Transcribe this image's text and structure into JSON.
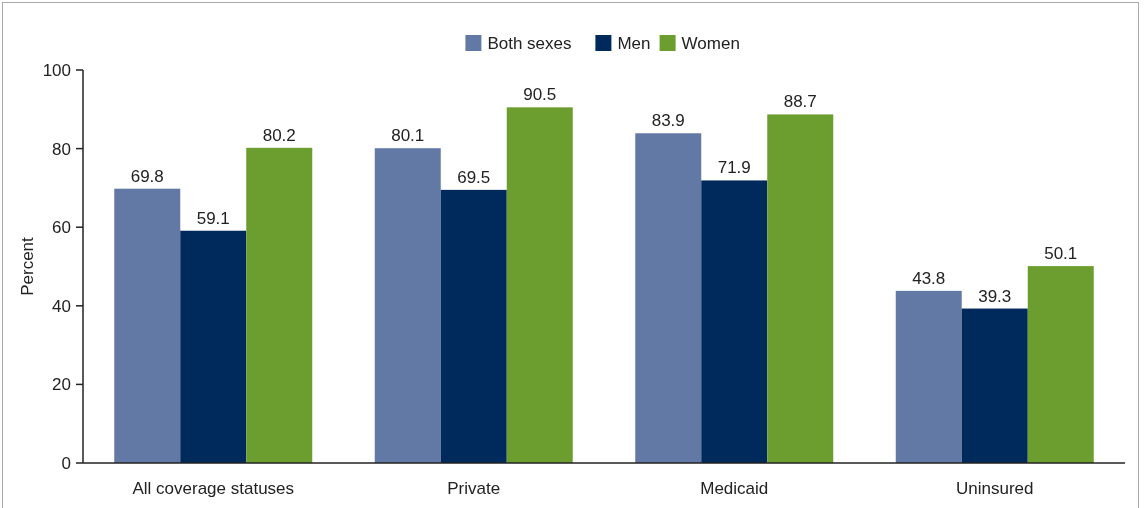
{
  "chart_data": {
    "type": "bar",
    "ylabel": "Percent",
    "categories": [
      "All coverage statuses",
      "Private",
      "Medicaid",
      "Uninsured"
    ],
    "series": [
      {
        "name": "Both sexes",
        "color": "#6379a5",
        "values": [
          69.8,
          80.1,
          83.9,
          43.8
        ]
      },
      {
        "name": "Men",
        "color": "#002a5c",
        "values": [
          59.1,
          69.5,
          71.9,
          39.3
        ]
      },
      {
        "name": "Women",
        "color": "#6c9e2f",
        "values": [
          80.2,
          90.5,
          88.7,
          50.1
        ]
      }
    ],
    "ylim": [
      0,
      100
    ],
    "yticks": [
      0,
      20,
      40,
      60,
      80,
      100
    ],
    "data_labels": true,
    "legend": "top",
    "grid": false
  }
}
